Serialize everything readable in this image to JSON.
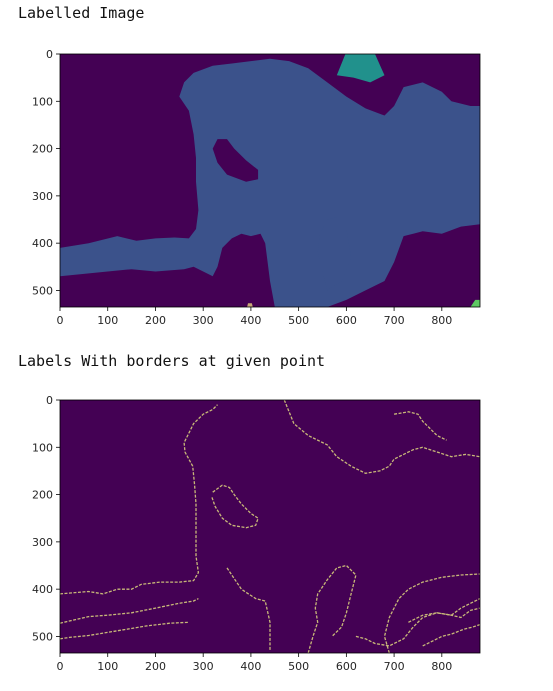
{
  "cells": [
    {
      "title": "Labelled Image",
      "chart_data": {
        "type": "heatmap",
        "title": "",
        "xlabel": "",
        "ylabel": "",
        "xlim": [
          0,
          880
        ],
        "ylim": [
          535,
          0
        ],
        "x_ticks": [
          0,
          100,
          200,
          300,
          400,
          500,
          600,
          700,
          800
        ],
        "y_ticks": [
          0,
          100,
          200,
          300,
          400,
          500
        ],
        "colormap": "viridis",
        "colors": {
          "background": "#440154",
          "region_blue": "#3b528b",
          "region_teal": "#21918c",
          "region_green": "#5ec962",
          "region_tan": "#c8a878"
        }
      }
    },
    {
      "title": "Labels With borders at given point",
      "chart_data": {
        "type": "heatmap",
        "title": "",
        "xlabel": "",
        "ylabel": "",
        "xlim": [
          0,
          880
        ],
        "ylim": [
          535,
          0
        ],
        "x_ticks": [
          0,
          100,
          200,
          300,
          400,
          500,
          600,
          700,
          800
        ],
        "y_ticks": [
          0,
          100,
          200,
          300,
          400,
          500
        ],
        "colormap": "viridis",
        "colors": {
          "background": "#440154",
          "border": "#c8b878"
        }
      }
    }
  ]
}
